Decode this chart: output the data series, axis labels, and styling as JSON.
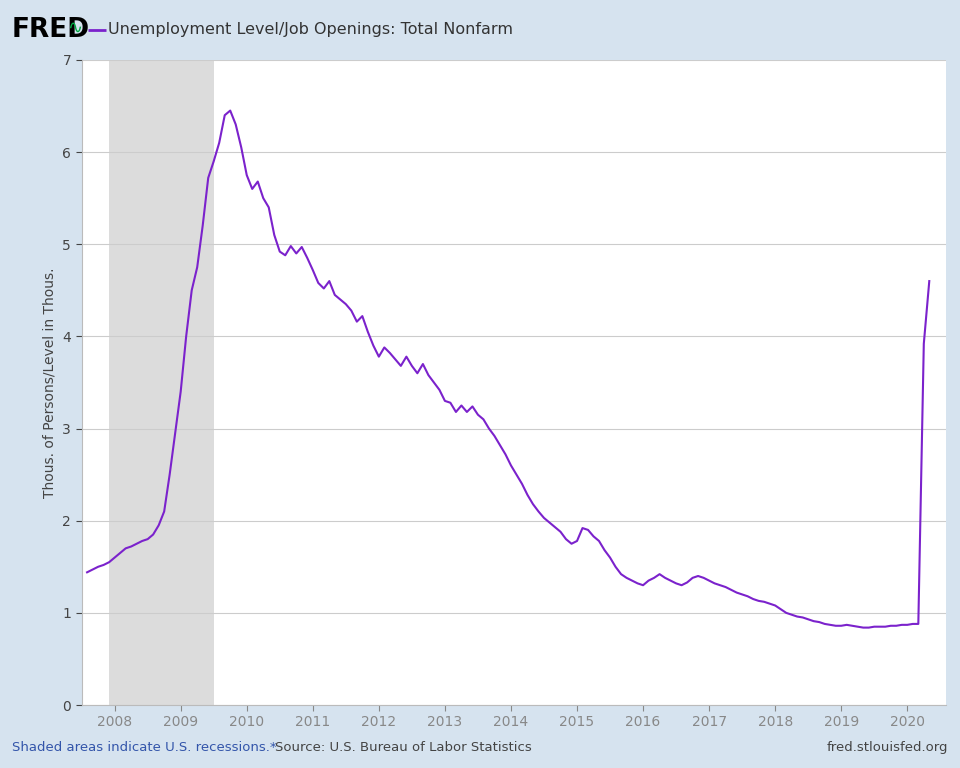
{
  "title": "Unemployment Level/Job Openings: Total Nonfarm",
  "ylabel": "Thous. of Persons/Level in Thous.",
  "footer_left": "Shaded areas indicate U.S. recessions.*",
  "footer_center": "Source: U.S. Bureau of Labor Statistics",
  "footer_right": "fred.stlouisfed.org",
  "line_color": "#7B22CC",
  "background_color": "#D6E3EF",
  "plot_bg_color": "#FFFFFF",
  "recession_color": "#DCDCDC",
  "recession_start": 2007.917,
  "recession_end": 2009.5,
  "ylim": [
    0,
    7
  ],
  "xlim_start": 2007.5,
  "xlim_end": 2020.58,
  "xticks": [
    2008,
    2009,
    2010,
    2011,
    2012,
    2013,
    2014,
    2015,
    2016,
    2017,
    2018,
    2019,
    2020
  ],
  "yticks": [
    0,
    1,
    2,
    3,
    4,
    5,
    6,
    7
  ],
  "dates": [
    2007.583,
    2007.667,
    2007.75,
    2007.833,
    2007.917,
    2008.0,
    2008.083,
    2008.167,
    2008.25,
    2008.333,
    2008.417,
    2008.5,
    2008.583,
    2008.667,
    2008.75,
    2008.833,
    2008.917,
    2009.0,
    2009.083,
    2009.167,
    2009.25,
    2009.333,
    2009.417,
    2009.5,
    2009.583,
    2009.667,
    2009.75,
    2009.833,
    2009.917,
    2010.0,
    2010.083,
    2010.167,
    2010.25,
    2010.333,
    2010.417,
    2010.5,
    2010.583,
    2010.667,
    2010.75,
    2010.833,
    2010.917,
    2011.0,
    2011.083,
    2011.167,
    2011.25,
    2011.333,
    2011.417,
    2011.5,
    2011.583,
    2011.667,
    2011.75,
    2011.833,
    2011.917,
    2012.0,
    2012.083,
    2012.167,
    2012.25,
    2012.333,
    2012.417,
    2012.5,
    2012.583,
    2012.667,
    2012.75,
    2012.833,
    2012.917,
    2013.0,
    2013.083,
    2013.167,
    2013.25,
    2013.333,
    2013.417,
    2013.5,
    2013.583,
    2013.667,
    2013.75,
    2013.833,
    2013.917,
    2014.0,
    2014.083,
    2014.167,
    2014.25,
    2014.333,
    2014.417,
    2014.5,
    2014.583,
    2014.667,
    2014.75,
    2014.833,
    2014.917,
    2015.0,
    2015.083,
    2015.167,
    2015.25,
    2015.333,
    2015.417,
    2015.5,
    2015.583,
    2015.667,
    2015.75,
    2015.833,
    2015.917,
    2016.0,
    2016.083,
    2016.167,
    2016.25,
    2016.333,
    2016.417,
    2016.5,
    2016.583,
    2016.667,
    2016.75,
    2016.833,
    2016.917,
    2017.0,
    2017.083,
    2017.167,
    2017.25,
    2017.333,
    2017.417,
    2017.5,
    2017.583,
    2017.667,
    2017.75,
    2017.833,
    2017.917,
    2018.0,
    2018.083,
    2018.167,
    2018.25,
    2018.333,
    2018.417,
    2018.5,
    2018.583,
    2018.667,
    2018.75,
    2018.833,
    2018.917,
    2019.0,
    2019.083,
    2019.167,
    2019.25,
    2019.333,
    2019.417,
    2019.5,
    2019.583,
    2019.667,
    2019.75,
    2019.833,
    2019.917,
    2020.0,
    2020.083,
    2020.167,
    2020.25,
    2020.333
  ],
  "values": [
    1.44,
    1.47,
    1.5,
    1.52,
    1.55,
    1.6,
    1.65,
    1.7,
    1.72,
    1.75,
    1.78,
    1.8,
    1.85,
    1.95,
    2.1,
    2.5,
    2.95,
    3.4,
    4.0,
    4.5,
    4.75,
    5.2,
    5.72,
    5.9,
    6.1,
    6.4,
    6.45,
    6.3,
    6.05,
    5.75,
    5.6,
    5.68,
    5.5,
    5.4,
    5.1,
    4.92,
    4.88,
    4.98,
    4.9,
    4.97,
    4.85,
    4.72,
    4.58,
    4.52,
    4.6,
    4.45,
    4.4,
    4.35,
    4.28,
    4.16,
    4.22,
    4.05,
    3.9,
    3.78,
    3.88,
    3.82,
    3.75,
    3.68,
    3.78,
    3.68,
    3.6,
    3.7,
    3.58,
    3.5,
    3.42,
    3.3,
    3.28,
    3.18,
    3.25,
    3.18,
    3.24,
    3.15,
    3.1,
    3.0,
    2.92,
    2.82,
    2.72,
    2.6,
    2.5,
    2.4,
    2.28,
    2.18,
    2.1,
    2.03,
    1.98,
    1.93,
    1.88,
    1.8,
    1.75,
    1.78,
    1.92,
    1.9,
    1.83,
    1.78,
    1.68,
    1.6,
    1.5,
    1.42,
    1.38,
    1.35,
    1.32,
    1.3,
    1.35,
    1.38,
    1.42,
    1.38,
    1.35,
    1.32,
    1.3,
    1.33,
    1.38,
    1.4,
    1.38,
    1.35,
    1.32,
    1.3,
    1.28,
    1.25,
    1.22,
    1.2,
    1.18,
    1.15,
    1.13,
    1.12,
    1.1,
    1.08,
    1.04,
    1.0,
    0.98,
    0.96,
    0.95,
    0.93,
    0.91,
    0.9,
    0.88,
    0.87,
    0.86,
    0.86,
    0.87,
    0.86,
    0.85,
    0.84,
    0.84,
    0.85,
    0.85,
    0.85,
    0.86,
    0.86,
    0.87,
    0.87,
    0.88,
    0.88,
    3.92,
    4.6
  ]
}
